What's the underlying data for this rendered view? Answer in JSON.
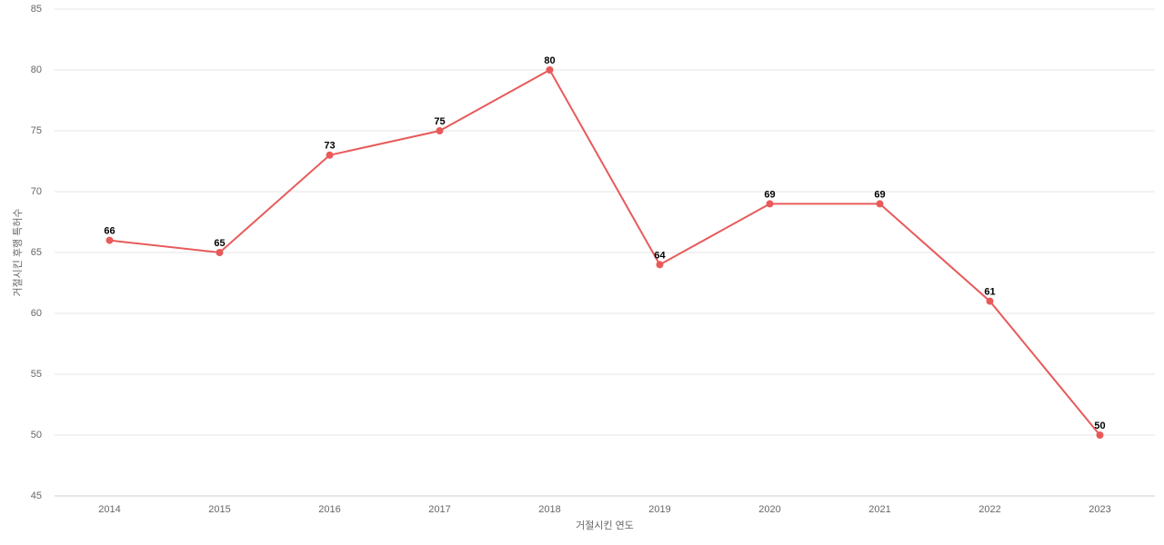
{
  "chart_data": {
    "type": "line",
    "x_label": "거절시킨 연도",
    "y_label": "거절시킨 후행 특허수",
    "categories": [
      "2014",
      "2015",
      "2016",
      "2017",
      "2018",
      "2019",
      "2020",
      "2021",
      "2022",
      "2023"
    ],
    "values": [
      66,
      65,
      73,
      75,
      80,
      64,
      69,
      69,
      61,
      50
    ],
    "color": "#e85a5a",
    "ylim": [
      45,
      85
    ],
    "yticks": [
      45,
      50,
      55,
      60,
      65,
      70,
      75,
      80,
      85
    ],
    "grid": true
  }
}
